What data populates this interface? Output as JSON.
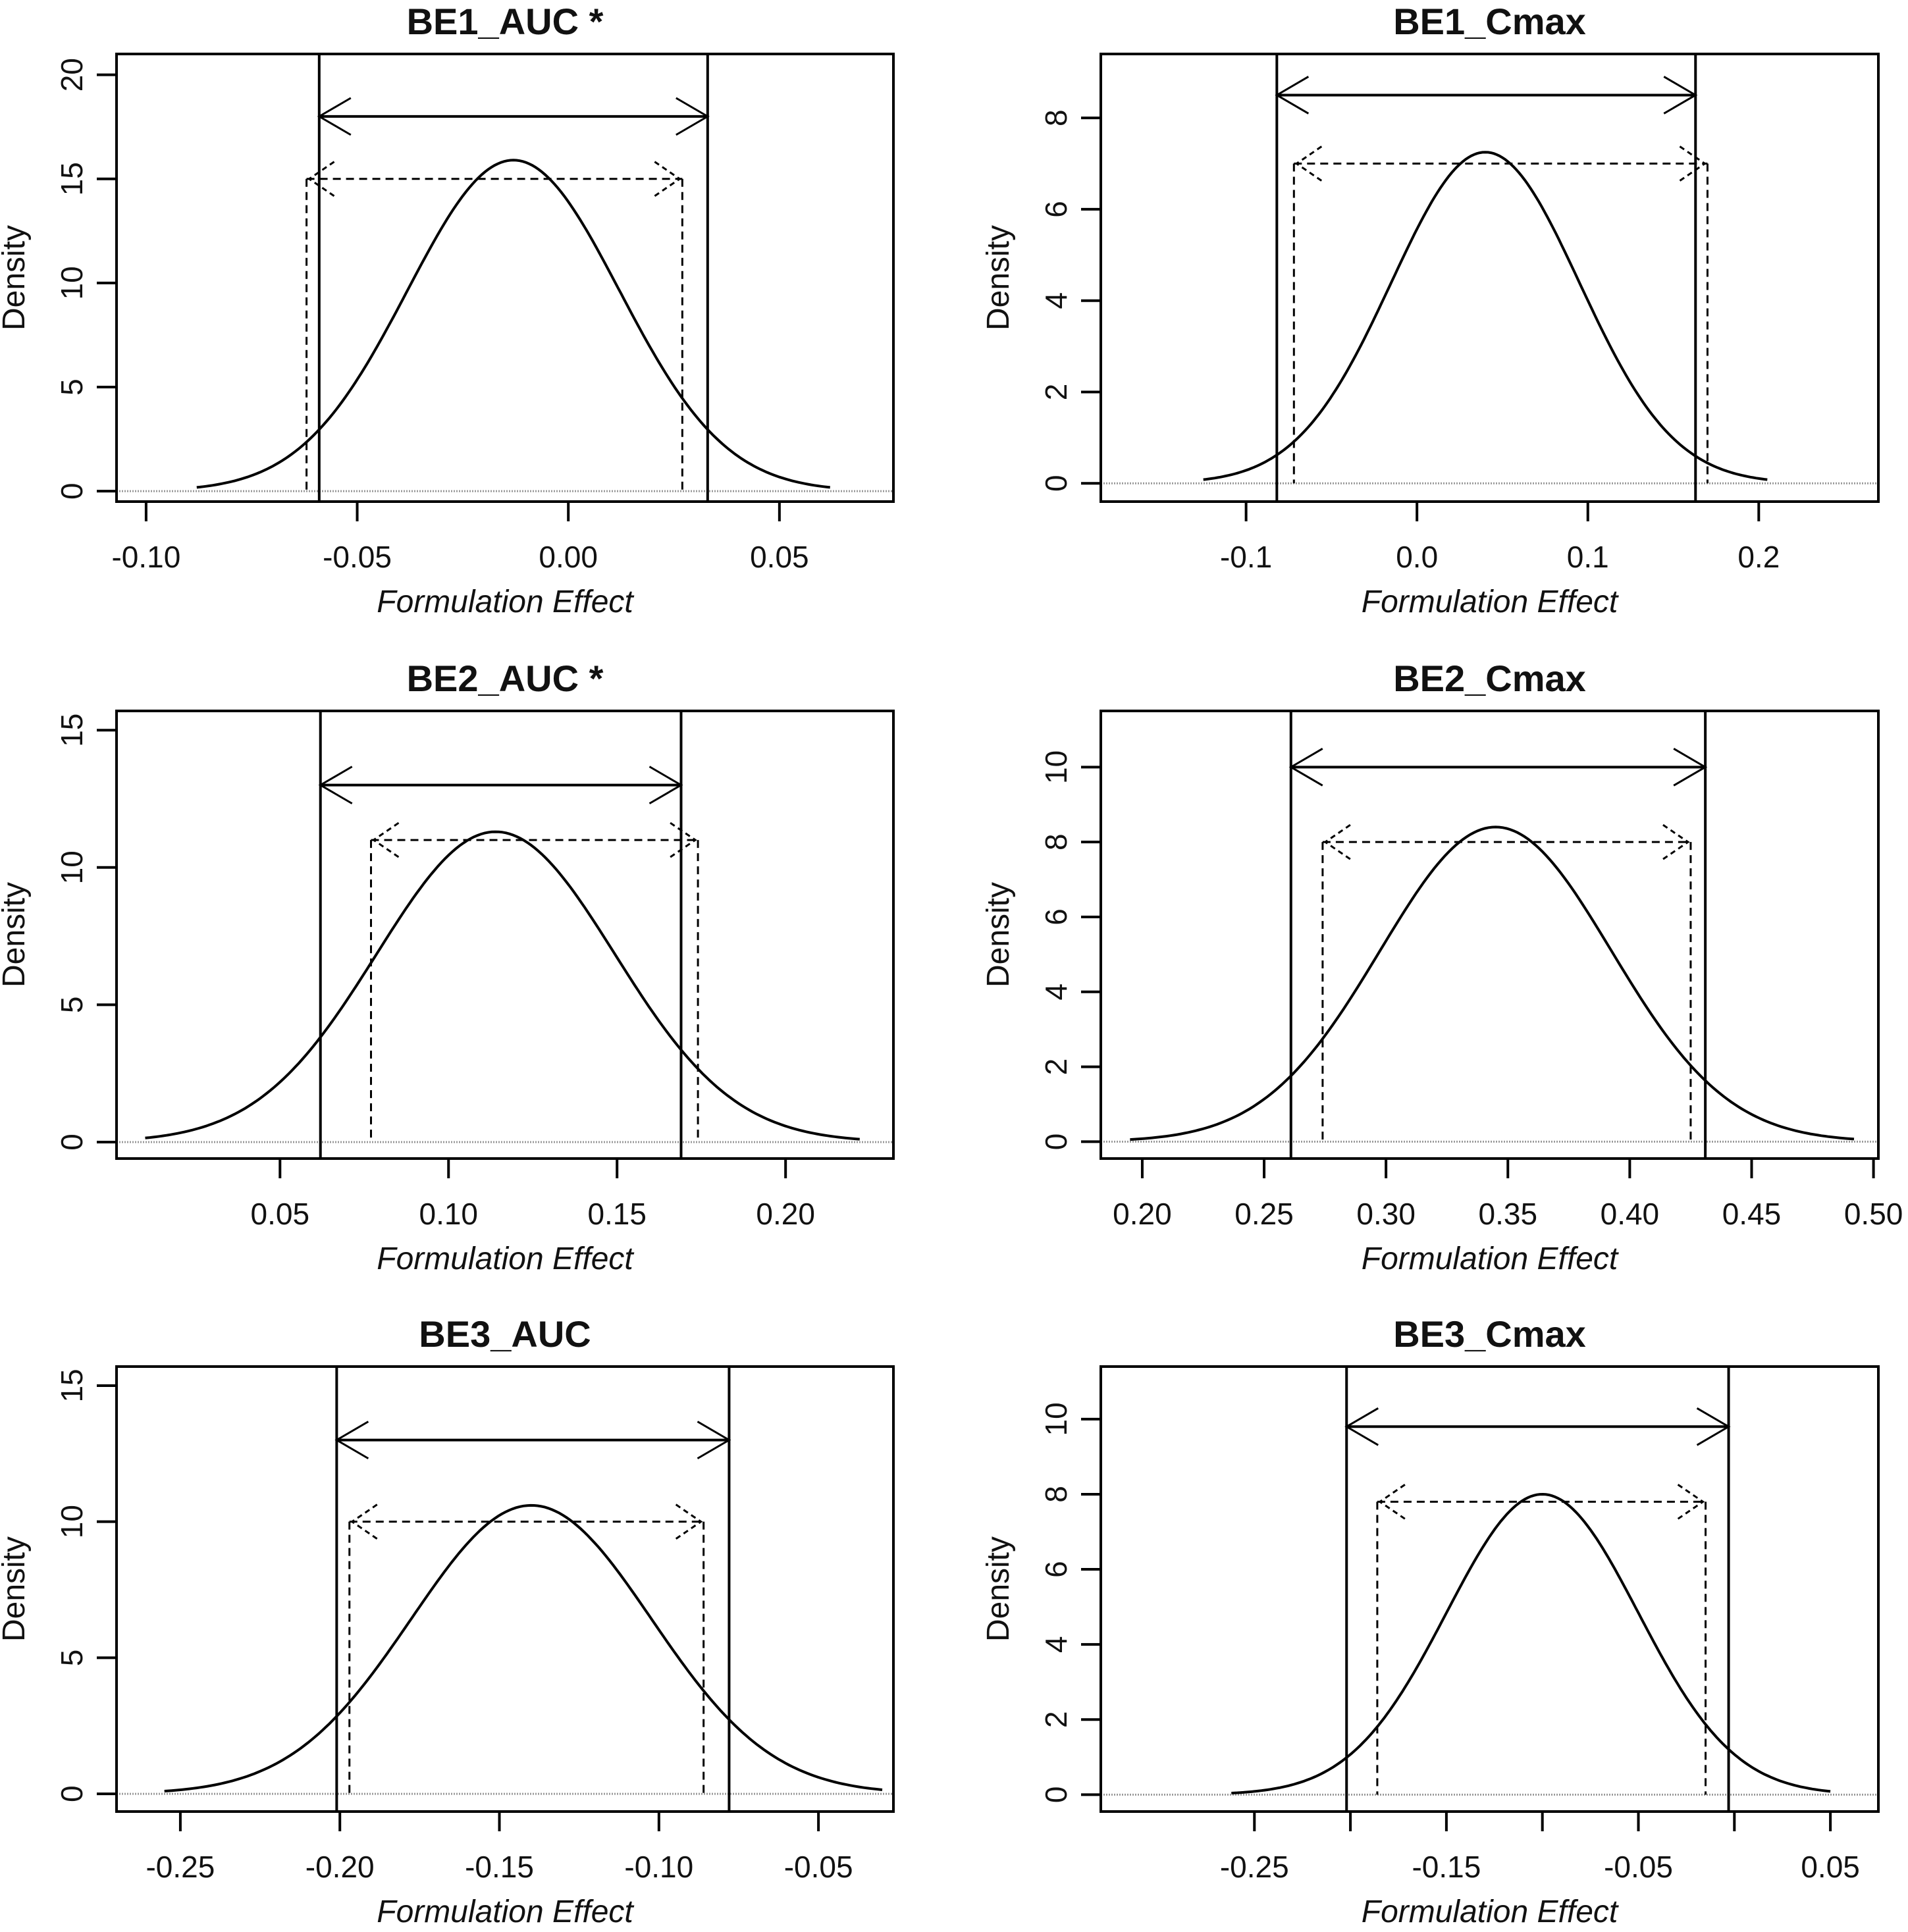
{
  "chart_data": [
    {
      "type": "line",
      "title": "BE1_AUC *",
      "xlabel": "Formulation Effect",
      "ylabel": "Density",
      "xlim": [
        -0.107,
        0.077
      ],
      "ylim": [
        -0.5,
        21
      ],
      "xticks": [
        -0.1,
        -0.05,
        0.0,
        0.05
      ],
      "xtick_labels": [
        "-0.10",
        "-0.05",
        "0.00",
        "0.05"
      ],
      "yticks": [
        0,
        5,
        10,
        15,
        20
      ],
      "ytick_labels": [
        "0",
        "5",
        "10",
        "15",
        "20"
      ],
      "density": {
        "mean": -0.013,
        "peak": 15.9,
        "x_from": -0.088,
        "x_to": 0.062
      },
      "limits": [
        -0.059,
        0.033
      ],
      "limit_arrow_y": 18,
      "ci": {
        "low": -0.062,
        "high": 0.027,
        "y": 15
      },
      "grid": false
    },
    {
      "type": "line",
      "title": "BE1_Cmax",
      "xlabel": "Formulation Effect",
      "ylabel": "Density",
      "xlim": [
        -0.185,
        0.27
      ],
      "ylim": [
        -0.4,
        9.4
      ],
      "xticks": [
        -0.1,
        0.0,
        0.1,
        0.2
      ],
      "xtick_labels": [
        "-0.1",
        "0.0",
        "0.1",
        "0.2"
      ],
      "yticks": [
        0,
        2,
        4,
        6,
        8
      ],
      "ytick_labels": [
        "0",
        "2",
        "4",
        "6",
        "8"
      ],
      "density": {
        "mean": 0.04,
        "peak": 7.25,
        "x_from": -0.125,
        "x_to": 0.205
      },
      "limits": [
        -0.082,
        0.163
      ],
      "limit_arrow_y": 8.5,
      "ci": {
        "low": -0.072,
        "high": 0.17,
        "y": 7.0
      },
      "grid": false
    },
    {
      "type": "line",
      "title": "BE2_AUC *",
      "xlabel": "Formulation Effect",
      "ylabel": "Density",
      "xlim": [
        0.0015,
        0.232
      ],
      "ylim": [
        -0.6,
        15.7
      ],
      "xticks": [
        0.05,
        0.1,
        0.15,
        0.2
      ],
      "xtick_labels": [
        "0.05",
        "0.10",
        "0.15",
        "0.20"
      ],
      "yticks": [
        0,
        5,
        10,
        15
      ],
      "ytick_labels": [
        "0",
        "5",
        "10",
        "15"
      ],
      "density": {
        "mean": 0.114,
        "peak": 11.3,
        "x_from": 0.01,
        "x_to": 0.222
      },
      "limits": [
        0.062,
        0.169
      ],
      "limit_arrow_y": 13,
      "ci": {
        "low": 0.077,
        "high": 0.174,
        "y": 11.0
      },
      "grid": false
    },
    {
      "type": "line",
      "title": "BE2_Cmax",
      "xlabel": "Formulation Effect",
      "ylabel": "Density",
      "xlim": [
        0.183,
        0.502
      ],
      "ylim": [
        -0.45,
        11.5
      ],
      "xticks": [
        0.2,
        0.25,
        0.3,
        0.35,
        0.4,
        0.45,
        0.5
      ],
      "xtick_labels": [
        "0.20",
        "0.25",
        "0.30",
        "0.35",
        "0.40",
        "0.45",
        "0.50"
      ],
      "yticks": [
        0,
        2,
        4,
        6,
        8,
        10
      ],
      "ytick_labels": [
        "0",
        "2",
        "4",
        "6",
        "8",
        "10"
      ],
      "density": {
        "mean": 0.345,
        "peak": 8.4,
        "x_from": 0.195,
        "x_to": 0.492
      },
      "limits": [
        0.261,
        0.431
      ],
      "limit_arrow_y": 10,
      "ci": {
        "low": 0.274,
        "high": 0.425,
        "y": 8.0
      },
      "grid": false
    },
    {
      "type": "line",
      "title": "BE3_AUC",
      "xlabel": "Formulation Effect",
      "ylabel": "Density",
      "xlim": [
        -0.27,
        -0.0265
      ],
      "ylim": [
        -0.65,
        15.7
      ],
      "xticks": [
        -0.25,
        -0.2,
        -0.15,
        -0.1,
        -0.05
      ],
      "xtick_labels": [
        "-0.25",
        "-0.20",
        "-0.15",
        "-0.10",
        "-0.05"
      ],
      "yticks": [
        0,
        5,
        10,
        15
      ],
      "ytick_labels": [
        "0",
        "5",
        "10",
        "15"
      ],
      "density": {
        "mean": -0.14,
        "peak": 10.6,
        "x_from": -0.255,
        "x_to": -0.03
      },
      "limits": [
        -0.201,
        -0.078
      ],
      "limit_arrow_y": 13,
      "ci": {
        "low": -0.197,
        "high": -0.086,
        "y": 10.0
      },
      "grid": false
    },
    {
      "type": "line",
      "title": "BE3_Cmax",
      "xlabel": "Formulation Effect",
      "ylabel": "Density",
      "xlim": [
        -0.33,
        0.075
      ],
      "ylim": [
        -0.45,
        11.4
      ],
      "xticks": [
        -0.25,
        -0.2,
        -0.15,
        -0.1,
        -0.05,
        0.0,
        0.05
      ],
      "xtick_labels": [
        "-0.25",
        "",
        "-0.15",
        "",
        "-0.05",
        "",
        "0.05"
      ],
      "yticks": [
        0,
        2,
        4,
        6,
        8,
        10
      ],
      "ytick_labels": [
        "0",
        "2",
        "4",
        "6",
        "8",
        "10"
      ],
      "density": {
        "mean": -0.1,
        "peak": 8.0,
        "x_from": -0.262,
        "x_to": 0.05
      },
      "limits": [
        -0.202,
        -0.003
      ],
      "limit_arrow_y": 9.8,
      "ci": {
        "low": -0.186,
        "high": -0.015,
        "y": 7.8
      },
      "grid": false
    }
  ]
}
